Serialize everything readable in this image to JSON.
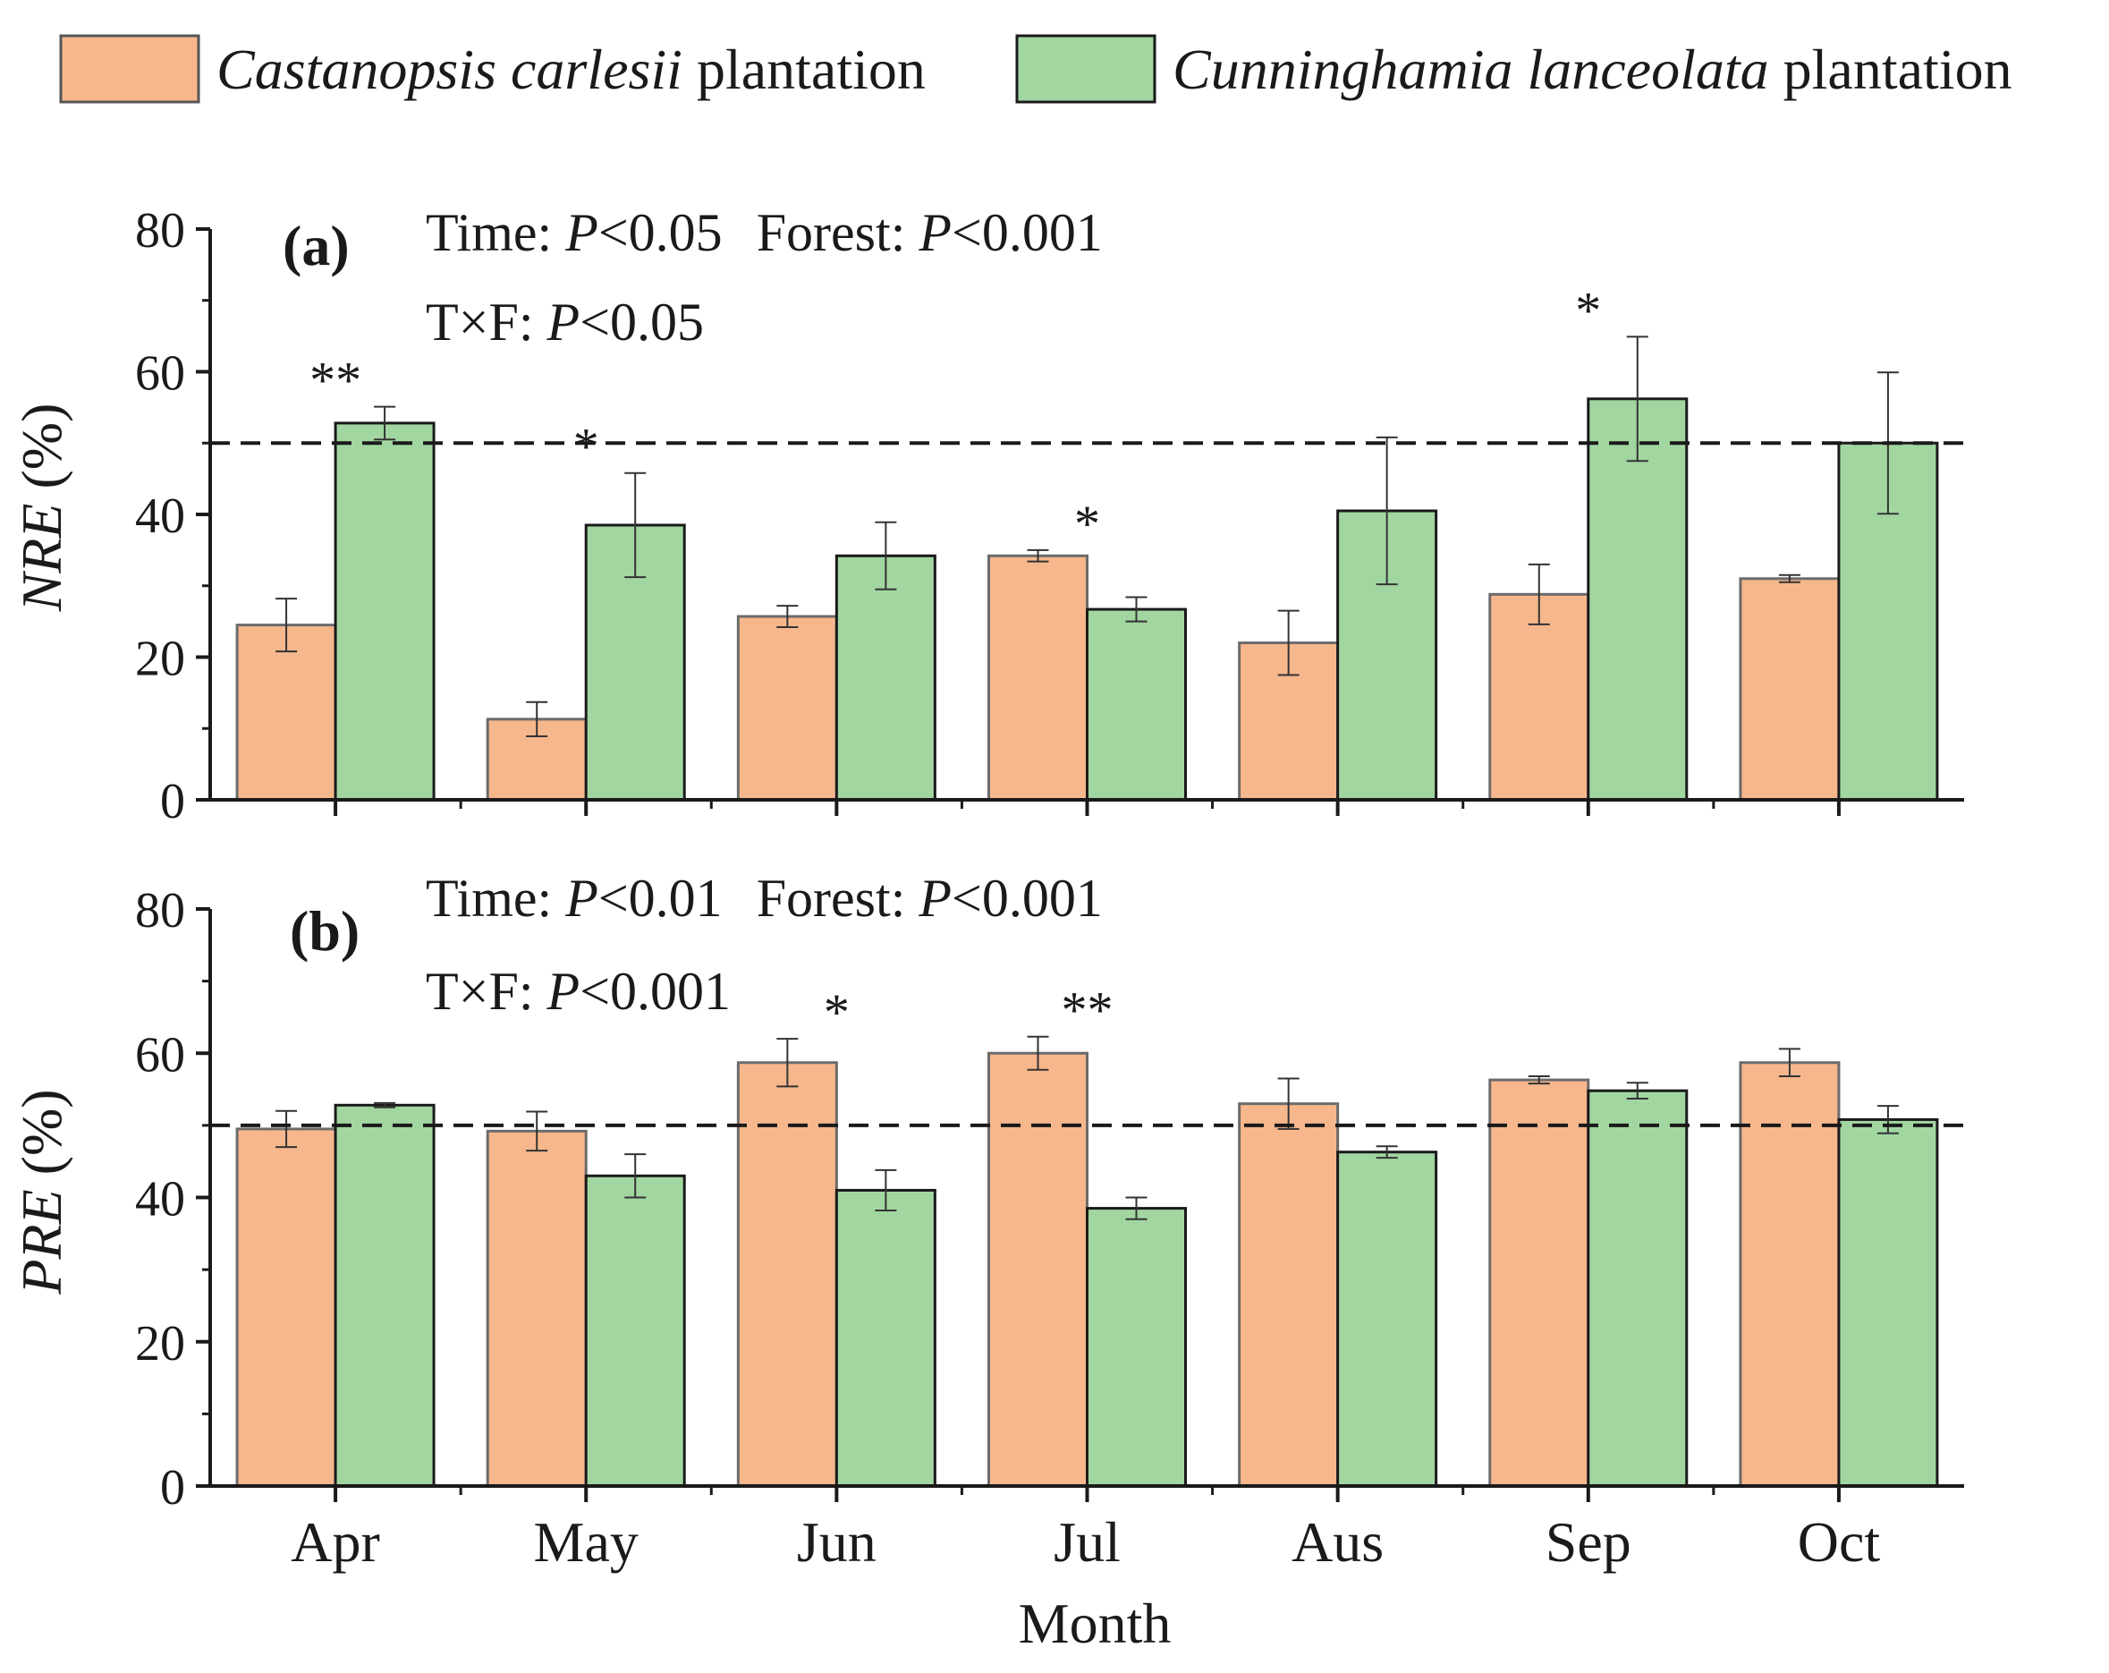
{
  "legend": {
    "items": [
      {
        "species": "Castanopsis carlesii",
        "suffix": " plantation",
        "color": "#f7b78c"
      },
      {
        "species": "Cunninghamia lanceolata",
        "suffix": " plantation",
        "color": "#a2d6a1"
      }
    ]
  },
  "xlabel": "Month",
  "chart_data": [
    {
      "type": "bar",
      "panel_label": "(a)",
      "ylabel_italic": "NRE",
      "ylabel_unit": " (%)",
      "stats_line1": [
        {
          "label": "Time: ",
          "p": "P",
          "value": "<0.05"
        },
        {
          "label": "Forest: ",
          "p": "P",
          "value": "<0.001"
        }
      ],
      "stats_line2": [
        {
          "label": "T×F: ",
          "p": "P",
          "value": "<0.05"
        }
      ],
      "categories": [
        "Apr",
        "May",
        "Jun",
        "Jul",
        "Aus",
        "Sep",
        "Oct"
      ],
      "ylim": [
        0,
        80
      ],
      "yticks": [
        0,
        20,
        40,
        60,
        80
      ],
      "reference_line": 50,
      "series": [
        {
          "name": "Castanopsis carlesii plantation",
          "color": "#f7b78c",
          "values": [
            24.5,
            11.3,
            25.7,
            34.2,
            22.0,
            28.8,
            31.0
          ],
          "errors": [
            3.7,
            2.4,
            1.5,
            0.8,
            4.5,
            4.2,
            0.5
          ]
        },
        {
          "name": "Cunninghamia lanceolata plantation",
          "color": "#a2d6a1",
          "values": [
            52.8,
            38.5,
            34.2,
            26.7,
            40.5,
            56.2,
            50.0
          ],
          "errors": [
            2.3,
            7.3,
            4.7,
            1.7,
            10.3,
            8.7,
            9.9
          ]
        }
      ],
      "significance": [
        {
          "category": "Apr",
          "marker": "**"
        },
        {
          "category": "May",
          "marker": "*"
        },
        {
          "category": "Jul",
          "marker": "*"
        },
        {
          "category": "Sep",
          "marker": "*"
        }
      ]
    },
    {
      "type": "bar",
      "panel_label": "(b)",
      "ylabel_italic": "PRE",
      "ylabel_unit": " (%)",
      "stats_line1": [
        {
          "label": "Time: ",
          "p": "P",
          "value": "<0.01"
        },
        {
          "label": "Forest: ",
          "p": "P",
          "value": "<0.001"
        }
      ],
      "stats_line2": [
        {
          "label": "T×F: ",
          "p": "P",
          "value": "<0.001"
        }
      ],
      "categories": [
        "Apr",
        "May",
        "Jun",
        "Jul",
        "Aus",
        "Sep",
        "Oct"
      ],
      "ylim": [
        0,
        80
      ],
      "yticks": [
        0,
        20,
        40,
        60,
        80
      ],
      "reference_line": 50,
      "series": [
        {
          "name": "Castanopsis carlesii plantation",
          "color": "#f7b78c",
          "values": [
            49.5,
            49.2,
            58.7,
            60.0,
            53.0,
            56.3,
            58.7
          ],
          "errors": [
            2.5,
            2.7,
            3.3,
            2.3,
            3.5,
            0.5,
            1.9
          ]
        },
        {
          "name": "Cunninghamia lanceolata plantation",
          "color": "#a2d6a1",
          "values": [
            52.8,
            43.0,
            41.0,
            38.5,
            46.3,
            54.8,
            50.8
          ],
          "errors": [
            0.3,
            3.0,
            2.8,
            1.5,
            0.8,
            1.1,
            1.9
          ]
        }
      ],
      "significance": [
        {
          "category": "Jun",
          "marker": "*"
        },
        {
          "category": "Jul",
          "marker": "**"
        }
      ]
    }
  ]
}
